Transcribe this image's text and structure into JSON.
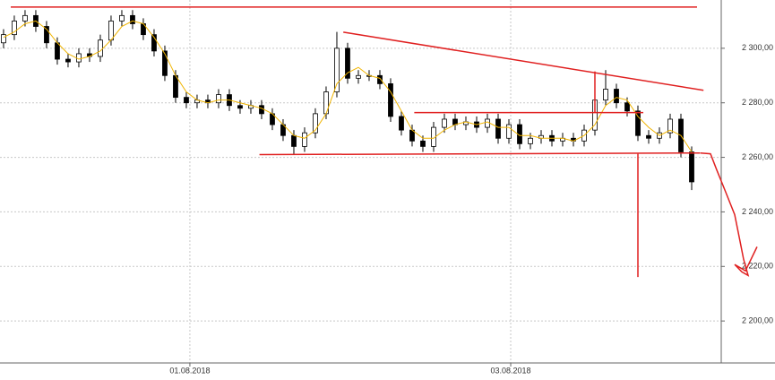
{
  "chart_data": {
    "type": "candlestick",
    "x": [
      0,
      1,
      2,
      3,
      4,
      5,
      6,
      7,
      8,
      9,
      10,
      11,
      12,
      13,
      14,
      15,
      16,
      17,
      18,
      19,
      20,
      21,
      22,
      23,
      24,
      25,
      26,
      27,
      28,
      29,
      30,
      31,
      32,
      33,
      34,
      35,
      36,
      37,
      38,
      39,
      40,
      41,
      42,
      43,
      44,
      45,
      46,
      47,
      48,
      49,
      50,
      51,
      52,
      53,
      54,
      55,
      56,
      57,
      58,
      59,
      60,
      61,
      62,
      63,
      64
    ],
    "open": [
      2302,
      2305,
      2310,
      2312,
      2308,
      2302,
      2296,
      2295,
      2298,
      2297,
      2303,
      2310,
      2312,
      2309,
      2305,
      2299,
      2290,
      2282,
      2280,
      2281,
      2280,
      2283,
      2279,
      2278,
      2279,
      2276,
      2272,
      2268,
      2264,
      2269,
      2276,
      2284,
      2300,
      2289,
      2290,
      2290,
      2287,
      2275,
      2270,
      2266,
      2264,
      2271,
      2274,
      2272,
      2273,
      2271,
      2274,
      2267,
      2272,
      2265,
      2267,
      2268,
      2266,
      2267,
      2266,
      2270,
      2281,
      2285,
      2280,
      2277,
      2268,
      2267,
      2269,
      2274,
      2262
    ],
    "high": [
      2307,
      2312,
      2314,
      2314,
      2310,
      2304,
      2298,
      2300,
      2300,
      2305,
      2312,
      2314,
      2314,
      2311,
      2307,
      2301,
      2292,
      2284,
      2283,
      2283,
      2285,
      2285,
      2281,
      2281,
      2281,
      2278,
      2274,
      2270,
      2271,
      2278,
      2286,
      2306,
      2302,
      2292,
      2292,
      2292,
      2289,
      2277,
      2272,
      2268,
      2273,
      2276,
      2276,
      2275,
      2275,
      2276,
      2276,
      2274,
      2274,
      2269,
      2270,
      2270,
      2269,
      2269,
      2272,
      2283,
      2292,
      2287,
      2282,
      2279,
      2270,
      2271,
      2276,
      2276,
      2264
    ],
    "low": [
      2300,
      2303,
      2308,
      2306,
      2300,
      2294,
      2293,
      2293,
      2295,
      2295,
      2301,
      2308,
      2307,
      2303,
      2297,
      2288,
      2280,
      2278,
      2278,
      2278,
      2278,
      2277,
      2276,
      2276,
      2274,
      2270,
      2266,
      2261,
      2262,
      2267,
      2274,
      2282,
      2287,
      2287,
      2288,
      2285,
      2273,
      2268,
      2264,
      2262,
      2262,
      2269,
      2270,
      2270,
      2269,
      2269,
      2265,
      2265,
      2263,
      2263,
      2265,
      2264,
      2264,
      2264,
      2264,
      2268,
      2279,
      2278,
      2275,
      2266,
      2265,
      2265,
      2267,
      2260,
      2248
    ],
    "close": [
      2305,
      2310,
      2312,
      2308,
      2302,
      2296,
      2295,
      2298,
      2297,
      2303,
      2310,
      2312,
      2309,
      2305,
      2299,
      2290,
      2282,
      2280,
      2281,
      2280,
      2283,
      2279,
      2278,
      2279,
      2276,
      2272,
      2268,
      2264,
      2269,
      2276,
      2284,
      2300,
      2289,
      2290,
      2290,
      2287,
      2275,
      2270,
      2266,
      2264,
      2271,
      2274,
      2272,
      2273,
      2271,
      2274,
      2267,
      2272,
      2265,
      2267,
      2268,
      2266,
      2267,
      2266,
      2270,
      2281,
      2285,
      2280,
      2277,
      2268,
      2267,
      2269,
      2274,
      2262,
      2251
    ],
    "average": {
      "color": "#f0b400",
      "values": [
        2304,
        2306,
        2309,
        2310,
        2307,
        2302,
        2298,
        2296,
        2297,
        2299,
        2303,
        2308,
        2310,
        2309,
        2304,
        2298,
        2290,
        2284,
        2281,
        2280,
        2281,
        2281,
        2280,
        2279,
        2278,
        2276,
        2272,
        2268,
        2267,
        2270,
        2276,
        2287,
        2291,
        2293,
        2290,
        2289,
        2284,
        2277,
        2270,
        2267,
        2267,
        2270,
        2272,
        2273,
        2272,
        2273,
        2271,
        2271,
        2268,
        2268,
        2267,
        2267,
        2267,
        2266,
        2268,
        2272,
        2279,
        2282,
        2281,
        2275,
        2271,
        2268,
        2270,
        2268,
        2262
      ]
    },
    "xlim": [
      -0.33,
      66.75
    ],
    "ylim": [
      2184.6,
      2317.7
    ],
    "xticks": [
      {
        "value": 17.33,
        "label": "01.08.2018"
      },
      {
        "value": 47.17,
        "label": "03.08.2018"
      }
    ],
    "yticks": [
      {
        "value": 2200,
        "label": "2 200,00"
      },
      {
        "value": 2220,
        "label": "2 220,00"
      },
      {
        "value": 2240,
        "label": "2 240,00"
      },
      {
        "value": 2260,
        "label": "2 260,00"
      },
      {
        "value": 2280,
        "label": "2 280,00"
      },
      {
        "value": 2300,
        "label": "2 300,00"
      }
    ],
    "grid": true,
    "lines": [
      {
        "color": "#e02020",
        "x": [
          0.67,
          64.5
        ],
        "y": [
          2315.1,
          2315.1
        ]
      },
      {
        "color": "#e02020",
        "x": [
          31.6,
          65.1
        ],
        "y": [
          2305.9,
          2284.6
        ]
      },
      {
        "color": "#e02020",
        "x": [
          23.8,
          64.8
        ],
        "y": [
          2261.0,
          2261.6
        ]
      },
      {
        "color": "#e02020",
        "x": [
          38.2,
          59.5
        ],
        "y": [
          2276.4,
          2276.4
        ]
      },
      {
        "color": "#e02020",
        "x": [
          55,
          55
        ],
        "y": [
          2291.5,
          2276.4
        ]
      },
      {
        "color": "#e02020",
        "x": [
          59,
          59
        ],
        "y": [
          2261.3,
          2216.1
        ]
      },
      {
        "color": "#e02020",
        "x": [
          64.83,
          65.75,
          66.33,
          67.17,
          68,
          68.5,
          68.83,
          69.25,
          68.67,
          68,
          69,
          70.08
        ],
        "y": [
          2261.6,
          2261.3,
          2255.4,
          2247.2,
          2239.0,
          2229.2,
          2222.6,
          2216.7,
          2218.0,
          2220.7,
          2218.4,
          2227.2
        ]
      }
    ]
  }
}
